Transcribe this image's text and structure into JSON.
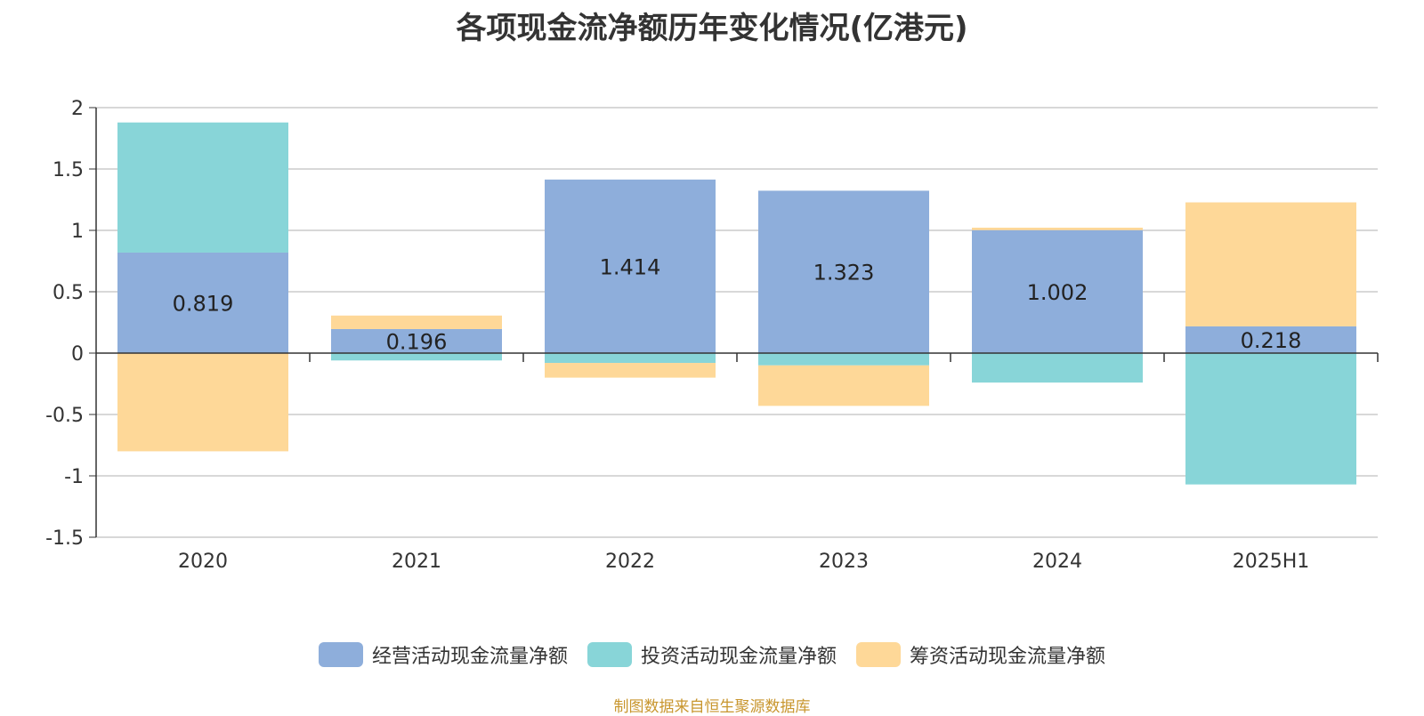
{
  "chart_data": {
    "type": "bar",
    "stacked": true,
    "title": "各项现金流净额历年变化情况(亿港元)",
    "categories": [
      "2020",
      "2021",
      "2022",
      "2023",
      "2024",
      "2025H1"
    ],
    "ylim": [
      -1.5,
      2
    ],
    "yticks": [
      2,
      1.5,
      1,
      0.5,
      0,
      -0.5,
      -1,
      -1.5
    ],
    "ytick_labels": [
      "2",
      "1.5",
      "1",
      "0.5",
      "0",
      "-0.5",
      "-1",
      "-1.5"
    ],
    "grid": true,
    "legend_position": "bottom",
    "series": [
      {
        "name": "经营活动现金流量净额",
        "color": "#8eaedb",
        "values": [
          0.819,
          0.196,
          1.414,
          1.323,
          1.002,
          0.218
        ],
        "data_labels": [
          "0.819",
          "0.196",
          "1.414",
          "1.323",
          "1.002",
          "0.218"
        ]
      },
      {
        "name": "投资活动现金流量净额",
        "color": "#88d5d8",
        "values": [
          1.06,
          -0.06,
          -0.08,
          -0.1,
          -0.24,
          -1.07
        ]
      },
      {
        "name": "筹资活动现金流量净额",
        "color": "#fed898",
        "values": [
          -0.8,
          0.11,
          -0.12,
          -0.33,
          0.02,
          1.01
        ]
      }
    ]
  },
  "source": "制图数据来自恒生聚源数据库"
}
